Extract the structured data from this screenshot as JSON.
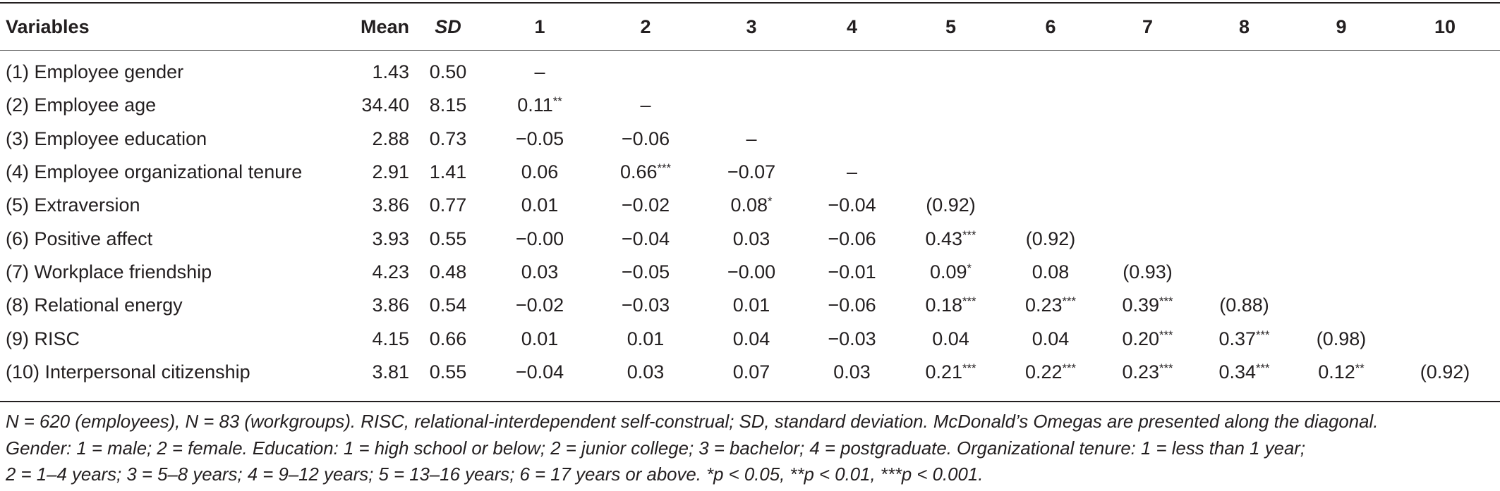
{
  "table": {
    "headers": [
      "Variables",
      "Mean",
      "SD",
      "1",
      "2",
      "3",
      "4",
      "5",
      "6",
      "7",
      "8",
      "9",
      "10"
    ],
    "rows": [
      {
        "label": "(1) Employee gender",
        "mean": "1.43",
        "sd": "0.50",
        "cells": [
          {
            "v": "–",
            "s": ""
          },
          {
            "v": "",
            "s": ""
          },
          {
            "v": "",
            "s": ""
          },
          {
            "v": "",
            "s": ""
          },
          {
            "v": "",
            "s": ""
          },
          {
            "v": "",
            "s": ""
          },
          {
            "v": "",
            "s": ""
          },
          {
            "v": "",
            "s": ""
          },
          {
            "v": "",
            "s": ""
          },
          {
            "v": "",
            "s": ""
          }
        ]
      },
      {
        "label": "(2) Employee age",
        "mean": "34.40",
        "sd": "8.15",
        "cells": [
          {
            "v": "0.11",
            "s": "**"
          },
          {
            "v": "–",
            "s": ""
          },
          {
            "v": "",
            "s": ""
          },
          {
            "v": "",
            "s": ""
          },
          {
            "v": "",
            "s": ""
          },
          {
            "v": "",
            "s": ""
          },
          {
            "v": "",
            "s": ""
          },
          {
            "v": "",
            "s": ""
          },
          {
            "v": "",
            "s": ""
          },
          {
            "v": "",
            "s": ""
          }
        ]
      },
      {
        "label": "(3) Employee education",
        "mean": "2.88",
        "sd": "0.73",
        "cells": [
          {
            "v": "−0.05",
            "s": ""
          },
          {
            "v": "−0.06",
            "s": ""
          },
          {
            "v": "–",
            "s": ""
          },
          {
            "v": "",
            "s": ""
          },
          {
            "v": "",
            "s": ""
          },
          {
            "v": "",
            "s": ""
          },
          {
            "v": "",
            "s": ""
          },
          {
            "v": "",
            "s": ""
          },
          {
            "v": "",
            "s": ""
          },
          {
            "v": "",
            "s": ""
          }
        ]
      },
      {
        "label": "(4) Employee organizational tenure",
        "mean": "2.91",
        "sd": "1.41",
        "cells": [
          {
            "v": "0.06",
            "s": ""
          },
          {
            "v": "0.66",
            "s": "***"
          },
          {
            "v": "−0.07",
            "s": ""
          },
          {
            "v": "–",
            "s": ""
          },
          {
            "v": "",
            "s": ""
          },
          {
            "v": "",
            "s": ""
          },
          {
            "v": "",
            "s": ""
          },
          {
            "v": "",
            "s": ""
          },
          {
            "v": "",
            "s": ""
          },
          {
            "v": "",
            "s": ""
          }
        ]
      },
      {
        "label": "(5) Extraversion",
        "mean": "3.86",
        "sd": "0.77",
        "cells": [
          {
            "v": "0.01",
            "s": ""
          },
          {
            "v": "−0.02",
            "s": ""
          },
          {
            "v": "0.08",
            "s": "*"
          },
          {
            "v": "−0.04",
            "s": ""
          },
          {
            "v": "(0.92)",
            "s": ""
          },
          {
            "v": "",
            "s": ""
          },
          {
            "v": "",
            "s": ""
          },
          {
            "v": "",
            "s": ""
          },
          {
            "v": "",
            "s": ""
          },
          {
            "v": "",
            "s": ""
          }
        ]
      },
      {
        "label": "(6) Positive affect",
        "mean": "3.93",
        "sd": "0.55",
        "cells": [
          {
            "v": "−0.00",
            "s": ""
          },
          {
            "v": "−0.04",
            "s": ""
          },
          {
            "v": "0.03",
            "s": ""
          },
          {
            "v": "−0.06",
            "s": ""
          },
          {
            "v": "0.43",
            "s": "***"
          },
          {
            "v": "(0.92)",
            "s": ""
          },
          {
            "v": "",
            "s": ""
          },
          {
            "v": "",
            "s": ""
          },
          {
            "v": "",
            "s": ""
          },
          {
            "v": "",
            "s": ""
          }
        ]
      },
      {
        "label": "(7) Workplace friendship",
        "mean": "4.23",
        "sd": "0.48",
        "cells": [
          {
            "v": "0.03",
            "s": ""
          },
          {
            "v": "−0.05",
            "s": ""
          },
          {
            "v": "−0.00",
            "s": ""
          },
          {
            "v": "−0.01",
            "s": ""
          },
          {
            "v": "0.09",
            "s": "*"
          },
          {
            "v": "0.08",
            "s": ""
          },
          {
            "v": "(0.93)",
            "s": ""
          },
          {
            "v": "",
            "s": ""
          },
          {
            "v": "",
            "s": ""
          },
          {
            "v": "",
            "s": ""
          }
        ]
      },
      {
        "label": "(8) Relational energy",
        "mean": "3.86",
        "sd": "0.54",
        "cells": [
          {
            "v": "−0.02",
            "s": ""
          },
          {
            "v": "−0.03",
            "s": ""
          },
          {
            "v": "0.01",
            "s": ""
          },
          {
            "v": "−0.06",
            "s": ""
          },
          {
            "v": "0.18",
            "s": "***"
          },
          {
            "v": "0.23",
            "s": "***"
          },
          {
            "v": "0.39",
            "s": "***"
          },
          {
            "v": "(0.88)",
            "s": ""
          },
          {
            "v": "",
            "s": ""
          },
          {
            "v": "",
            "s": ""
          }
        ]
      },
      {
        "label": "(9) RISC",
        "mean": "4.15",
        "sd": "0.66",
        "cells": [
          {
            "v": "0.01",
            "s": ""
          },
          {
            "v": "0.01",
            "s": ""
          },
          {
            "v": "0.04",
            "s": ""
          },
          {
            "v": "−0.03",
            "s": ""
          },
          {
            "v": "0.04",
            "s": ""
          },
          {
            "v": "0.04",
            "s": ""
          },
          {
            "v": "0.20",
            "s": "***"
          },
          {
            "v": "0.37",
            "s": "***"
          },
          {
            "v": "(0.98)",
            "s": ""
          },
          {
            "v": "",
            "s": ""
          }
        ]
      },
      {
        "label": "(10) Interpersonal citizenship",
        "mean": "3.81",
        "sd": "0.55",
        "cells": [
          {
            "v": "−0.04",
            "s": ""
          },
          {
            "v": "0.03",
            "s": ""
          },
          {
            "v": "0.07",
            "s": ""
          },
          {
            "v": "0.03",
            "s": ""
          },
          {
            "v": "0.21",
            "s": "***"
          },
          {
            "v": "0.22",
            "s": "***"
          },
          {
            "v": "0.23",
            "s": "***"
          },
          {
            "v": "0.34",
            "s": "***"
          },
          {
            "v": "0.12",
            "s": "**"
          },
          {
            "v": "(0.92)",
            "s": ""
          }
        ]
      }
    ]
  },
  "footnote": {
    "line1": "N = 620 (employees), N = 83 (workgroups). RISC, relational-interdependent self-construal; SD, standard deviation. McDonald’s Omegas are presented along the diagonal.",
    "line2": "Gender: 1 = male; 2 = female. Education: 1 = high school or below; 2 = junior college; 3 = bachelor; 4 = postgraduate. Organizational tenure: 1 = less than 1 year;",
    "line3": "2 = 1–4 years; 3 = 5–8 years; 4 = 9–12 years; 5 = 13–16 years; 6 = 17 years or above. *p < 0.05, **p < 0.01, ***p < 0.001."
  }
}
